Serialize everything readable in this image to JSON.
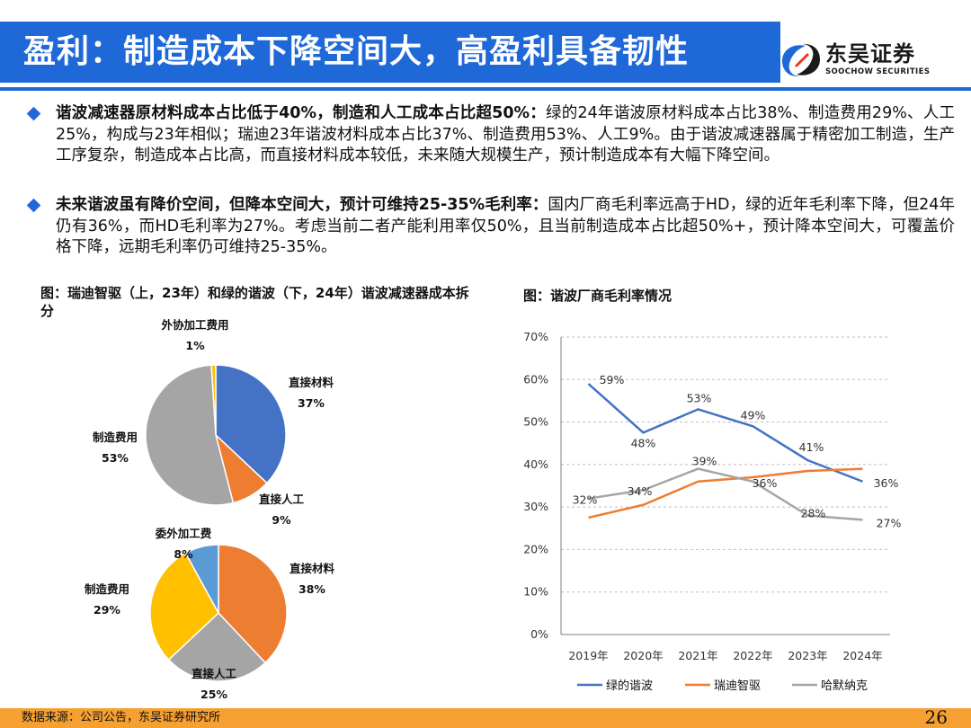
{
  "header": {
    "title": "盈利：制造成本下降空间大，高盈利具备韧性"
  },
  "logo": {
    "name_cn": "东吴证券",
    "name_en": "SOOCHOW SECURITIES",
    "colors": [
      "#1f68d8",
      "#e8341c"
    ]
  },
  "bullets": [
    {
      "lead": "谐波减速器原材料成本占比低于40%，制造和人工成本占比超50%：",
      "text": "绿的24年谐波原材料成本占比38%、制造费用29%、人工25%，构成与23年相似；瑞迪23年谐波材料成本占比37%、制造费用53%、人工9%。由于谐波减速器属于精密加工制造，生产工序复杂，制造成本占比高，而直接材料成本较低，未来随大规模生产，预计制造成本有大幅下降空间。"
    },
    {
      "lead": "未来谐波虽有降价空间，但降本空间大，预计可维持25-35%毛利率：",
      "text": "国内厂商毛利率远高于HD，绿的近年毛利率下降，但24年仍有36%，而HD毛利率为27%。考虑当前二者产能利用率仅50%，且当前制造成本占比超50%+，预计降本空间大，可覆盖价格下降，远期毛利率仍可维持25-35%。"
    }
  ],
  "figures": {
    "pie_title": "图：瑞迪智驱（上，23年）和绿的谐波（下，24年）谐波减速器成本拆分",
    "line_title": "图：谐波厂商毛利率情况"
  },
  "chart_data": [
    {
      "type": "pie",
      "slices": [
        {
          "label": "直接材料",
          "value": 37,
          "display": "37%",
          "color": "#4472c4"
        },
        {
          "label": "直接人工",
          "value": 9,
          "display": "9%",
          "color": "#ed7d31"
        },
        {
          "label": "制造费用",
          "value": 53,
          "display": "53%",
          "color": "#a5a5a5"
        },
        {
          "label": "外协加工费用",
          "value": 1,
          "display": "1%",
          "color": "#ffc000"
        }
      ]
    },
    {
      "type": "pie",
      "slices": [
        {
          "label": "直接材料",
          "value": 38,
          "display": "38%",
          "color": "#ed7d31"
        },
        {
          "label": "直接人工",
          "value": 25,
          "display": "25%",
          "color": "#a5a5a5"
        },
        {
          "label": "制造费用",
          "value": 29,
          "display": "29%",
          "color": "#ffc000"
        },
        {
          "label": "委外加工费",
          "value": 8,
          "display": "8%",
          "color": "#5b9bd5"
        }
      ]
    },
    {
      "type": "line",
      "categories": [
        "2019年",
        "2020年",
        "2021年",
        "2022年",
        "2023年",
        "2024年"
      ],
      "ylim": [
        0,
        70
      ],
      "yticks": [
        "0%",
        "10%",
        "20%",
        "30%",
        "40%",
        "50%",
        "60%",
        "70%"
      ],
      "ytick_values": [
        0,
        10,
        20,
        30,
        40,
        50,
        60,
        70
      ],
      "grid": true,
      "legend": "bottom",
      "series": [
        {
          "name": "绿的谐波",
          "color": "#4472c4",
          "values": [
            59,
            47.5,
            53,
            49,
            41,
            36
          ],
          "labels": [
            "59%",
            "48%",
            "53%",
            "49%",
            "41%",
            "36%"
          ],
          "label_indices": [
            0,
            1,
            2,
            3,
            4,
            5
          ]
        },
        {
          "name": "瑞迪智驱",
          "color": "#ed7d31",
          "values": [
            27.5,
            30.5,
            36,
            37,
            38.5,
            39
          ],
          "labels": [],
          "label_indices": []
        },
        {
          "name": "哈默纳克",
          "color": "#a5a5a5",
          "values": [
            32,
            34,
            39,
            36,
            28,
            27
          ],
          "labels": [
            "32%",
            "34%",
            "39%",
            "36%",
            "28%",
            "27%"
          ],
          "label_indices": [
            0,
            1,
            2,
            3,
            4,
            5
          ]
        }
      ]
    }
  ],
  "footer": {
    "source": "数据来源：公司公告，东吴证券研究所",
    "page": "26"
  }
}
